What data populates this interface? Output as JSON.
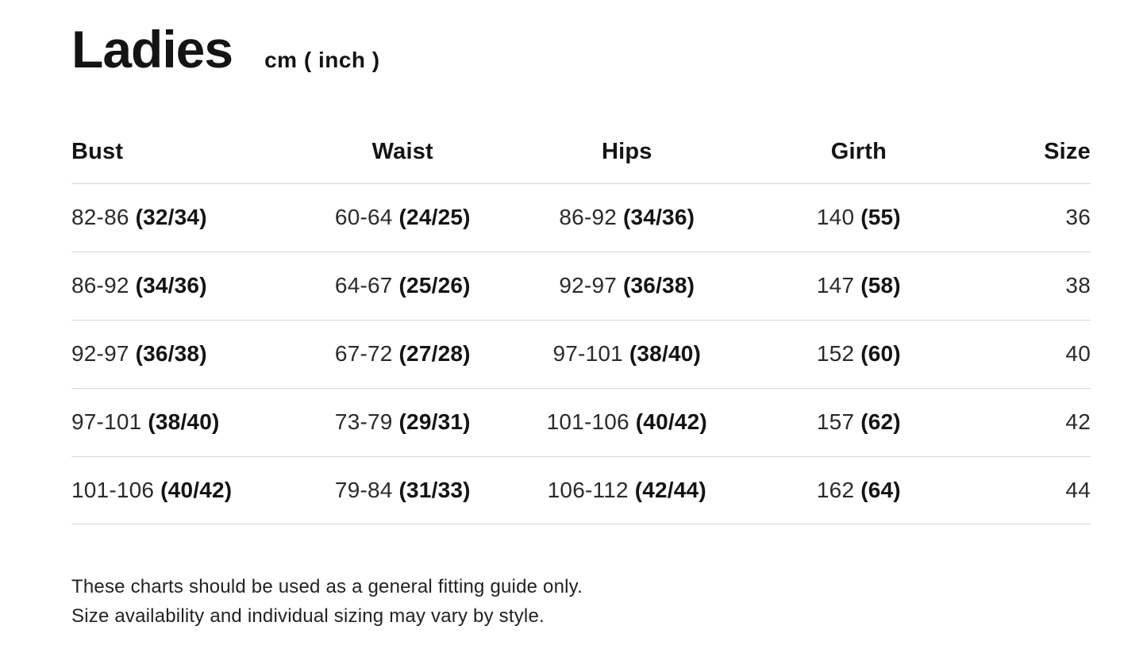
{
  "header": {
    "title": "Ladies",
    "unit_label": "cm ( inch )"
  },
  "table": {
    "columns": [
      "Bust",
      "Waist",
      "Hips",
      "Girth",
      "Size"
    ],
    "rows": [
      {
        "bust_cm": "82-86",
        "bust_in": "(32/34)",
        "waist_cm": "60-64",
        "waist_in": "(24/25)",
        "hips_cm": "86-92",
        "hips_in": "(34/36)",
        "girth_cm": "140",
        "girth_in": "(55)",
        "size": "36"
      },
      {
        "bust_cm": "86-92",
        "bust_in": "(34/36)",
        "waist_cm": "64-67",
        "waist_in": "(25/26)",
        "hips_cm": "92-97",
        "hips_in": "(36/38)",
        "girth_cm": "147",
        "girth_in": "(58)",
        "size": "38"
      },
      {
        "bust_cm": "92-97",
        "bust_in": "(36/38)",
        "waist_cm": "67-72",
        "waist_in": "(27/28)",
        "hips_cm": "97-101",
        "hips_in": "(38/40)",
        "girth_cm": "152",
        "girth_in": "(60)",
        "size": "40"
      },
      {
        "bust_cm": "97-101",
        "bust_in": "(38/40)",
        "waist_cm": "73-79",
        "waist_in": "(29/31)",
        "hips_cm": "101-106",
        "hips_in": "(40/42)",
        "girth_cm": "157",
        "girth_in": "(62)",
        "size": "42"
      },
      {
        "bust_cm": "101-106",
        "bust_in": "(40/42)",
        "waist_cm": "79-84",
        "waist_in": "(31/33)",
        "hips_cm": "106-112",
        "hips_in": "(42/44)",
        "girth_cm": "162",
        "girth_in": "(64)",
        "size": "44"
      }
    ]
  },
  "footer": {
    "line1": "These charts should be used as a general fitting guide only.",
    "line2": "Size availability and individual sizing may vary by style."
  },
  "colors": {
    "text": "#191919",
    "divider": "#d6d6d6",
    "background": "#ffffff"
  },
  "chart_data": {
    "type": "table",
    "title": "Ladies cm ( inch )",
    "columns": [
      "Bust",
      "Waist",
      "Hips",
      "Girth",
      "Size"
    ],
    "rows": [
      [
        "82-86 (32/34)",
        "60-64 (24/25)",
        "86-92 (34/36)",
        "140 (55)",
        "36"
      ],
      [
        "86-92 (34/36)",
        "64-67 (25/26)",
        "92-97 (36/38)",
        "147 (58)",
        "38"
      ],
      [
        "92-97 (36/38)",
        "67-72 (27/28)",
        "97-101 (38/40)",
        "152 (60)",
        "40"
      ],
      [
        "97-101 (38/40)",
        "73-79 (29/31)",
        "101-106 (40/42)",
        "157 (62)",
        "42"
      ],
      [
        "101-106 (40/42)",
        "79-84 (31/33)",
        "106-112 (42/44)",
        "162 (64)",
        "44"
      ]
    ],
    "notes": [
      "These charts should be used as a general fitting guide only.",
      "Size availability and individual sizing may vary by style."
    ]
  }
}
